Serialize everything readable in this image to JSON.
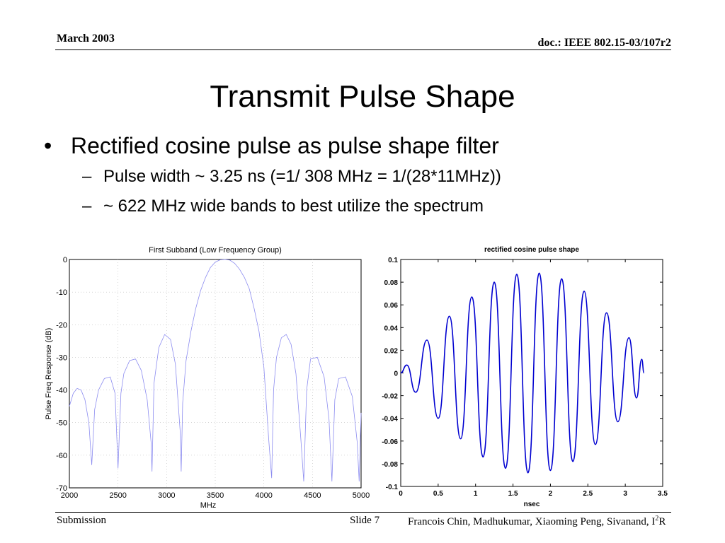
{
  "header": {
    "date": "March 2003",
    "doc": "doc.: IEEE 802.15-03/107r2"
  },
  "slide": {
    "title": "Transmit Pulse Shape",
    "bullet": "Rectified cosine pulse as pulse shape filter",
    "sub_bullets": [
      "Pulse width ~ 3.25 ns (=1/ 308 MHz = 1/(28*11MHz))",
      "~ 622 MHz wide bands to best utilize the spectrum"
    ]
  },
  "footer": {
    "left": "Submission",
    "slide": "Slide 7",
    "authors": "Francois Chin, Madhukumar, Xiaoming Peng, Sivanand, I",
    "authors_sup": "2",
    "authors_end": "R"
  },
  "chart_data": [
    {
      "type": "line",
      "title": "First Subband (Low Frequency Group)",
      "xlabel": "MHz",
      "ylabel": "Pulse Freq Response (dB)",
      "xlim": [
        2000,
        5000
      ],
      "ylim": [
        -70,
        0
      ],
      "xticks": [
        2000,
        2500,
        3000,
        3500,
        4000,
        4500,
        5000
      ],
      "yticks": [
        0,
        -10,
        -20,
        -30,
        -40,
        -50,
        -60,
        -70
      ],
      "grid": true,
      "color": "#8c8cf0",
      "series": [
        {
          "x": [
            2000,
            2040,
            2080,
            2120,
            2160,
            2200,
            2230,
            2260,
            2300,
            2360,
            2420,
            2470,
            2500,
            2530,
            2560,
            2620,
            2680,
            2740,
            2800,
            2840,
            2850,
            2870,
            2920,
            2980,
            3040,
            3090,
            3140,
            3150,
            3165,
            3200,
            3250,
            3300,
            3350,
            3400,
            3450,
            3500,
            3550,
            3600,
            3650,
            3700,
            3750,
            3800,
            3850,
            3900,
            3950,
            4000,
            4050,
            4080,
            4100,
            4130,
            4180,
            4230,
            4280,
            4330,
            4380,
            4410,
            4440,
            4480,
            4550,
            4620,
            4670,
            4700,
            4730,
            4770,
            4840,
            4910,
            4960,
            4980,
            5000
          ],
          "y": [
            -45,
            -41,
            -39.5,
            -40,
            -43,
            -50,
            -63,
            -46,
            -40,
            -36.5,
            -36,
            -41,
            -64,
            -41,
            -35,
            -31,
            -30.5,
            -34,
            -43,
            -56,
            -65,
            -38,
            -27,
            -23,
            -24.5,
            -32,
            -53,
            -65,
            -44,
            -31,
            -22,
            -15,
            -9.5,
            -5.5,
            -2.5,
            -0.8,
            -0.1,
            0,
            -0.2,
            -1.2,
            -3,
            -5.5,
            -9,
            -15,
            -22,
            -33,
            -55,
            -67,
            -40,
            -30,
            -24,
            -23,
            -26,
            -35,
            -55,
            -68,
            -40,
            -30.5,
            -30,
            -36,
            -49,
            -68,
            -43,
            -36.5,
            -36,
            -42,
            -56,
            -68,
            -47
          ]
        }
      ]
    },
    {
      "type": "line",
      "title": "rectified cosine pulse shape",
      "xlabel": "nsec",
      "ylabel": "",
      "xlim": [
        0,
        3.5
      ],
      "ylim": [
        -0.1,
        0.1
      ],
      "xticks": [
        "0",
        "0.5",
        "1",
        "1.5",
        "2",
        "2.5",
        "3",
        "3.5"
      ],
      "yticks": [
        "0.1",
        "0.08",
        "0.06",
        "0.04",
        "0.02",
        "0",
        "-0.02",
        "-0.04",
        "-0.06",
        "-0.08",
        "-0.1"
      ],
      "grid": false,
      "color": "#0000d0",
      "peaks": [
        {
          "x": 0.0,
          "y": 0.0
        },
        {
          "x": 0.08,
          "y": 0.007
        },
        {
          "x": 0.2,
          "y": -0.017
        },
        {
          "x": 0.35,
          "y": 0.029
        },
        {
          "x": 0.5,
          "y": -0.04
        },
        {
          "x": 0.65,
          "y": 0.05
        },
        {
          "x": 0.8,
          "y": -0.058
        },
        {
          "x": 0.95,
          "y": 0.067
        },
        {
          "x": 1.1,
          "y": -0.074
        },
        {
          "x": 1.25,
          "y": 0.08
        },
        {
          "x": 1.4,
          "y": -0.084
        },
        {
          "x": 1.55,
          "y": 0.087
        },
        {
          "x": 1.7,
          "y": -0.088
        },
        {
          "x": 1.85,
          "y": 0.088
        },
        {
          "x": 2.0,
          "y": -0.086
        },
        {
          "x": 2.15,
          "y": 0.083
        },
        {
          "x": 2.3,
          "y": -0.078
        },
        {
          "x": 2.45,
          "y": 0.072
        },
        {
          "x": 2.6,
          "y": -0.063
        },
        {
          "x": 2.75,
          "y": 0.053
        },
        {
          "x": 2.9,
          "y": -0.043
        },
        {
          "x": 3.05,
          "y": 0.031
        },
        {
          "x": 3.15,
          "y": -0.022
        },
        {
          "x": 3.22,
          "y": 0.012
        },
        {
          "x": 3.25,
          "y": 0.0
        }
      ]
    }
  ]
}
